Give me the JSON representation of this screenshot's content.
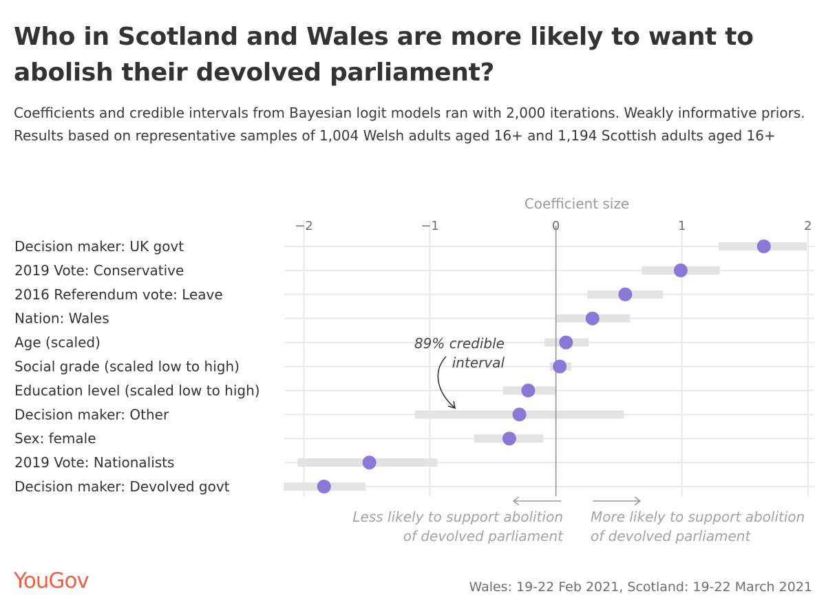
{
  "title": "Who in Scotland and Wales are more likely to want to abolish their devolved parliament?",
  "subtitle": "Coefficients and credible intervals from Bayesian logit models ran with 2,000 iterations. Weakly informative priors. Results based on representative samples of 1,004 Welsh adults aged 16+ and 1,194 Scottish adults aged 16+",
  "brand": "YouGov",
  "source": "Wales: 19-22 Feb 2021, Scotland: 19-22 March 2021",
  "colors": {
    "point": "#8a77d8",
    "interval": "#e3e3e3",
    "grid": "#e8e8e8",
    "zero": "#8f8f8f",
    "brand": "#ef5f42"
  },
  "chart_data": {
    "type": "scatter",
    "xlabel": "Coefficient size",
    "xlim": [
      -2.15,
      2.05
    ],
    "xticks": [
      -2,
      -1,
      0,
      1,
      2
    ],
    "xtick_labels": [
      "−2",
      "−1",
      "0",
      "1",
      "2"
    ],
    "categories": [
      "Decision maker: UK govt",
      "2019 Vote: Conservative",
      "2016 Referendum vote: Leave",
      "Nation: Wales",
      "Age (scaled)",
      "Social grade (scaled low to high)",
      "Education level (scaled low to high)",
      "Decision maker: Other",
      "Sex: female",
      "2019 Vote: Nationalists",
      "Decision maker: Devolved govt"
    ],
    "series": [
      {
        "values": [
          1.65,
          0.99,
          0.55,
          0.29,
          0.08,
          0.03,
          -0.22,
          -0.29,
          -0.37,
          -1.48,
          -1.84
        ],
        "lower": [
          1.29,
          0.68,
          0.25,
          0.0,
          -0.09,
          -0.05,
          -0.42,
          -1.12,
          -0.65,
          -2.05,
          -2.16
        ],
        "upper": [
          1.99,
          1.3,
          0.85,
          0.59,
          0.26,
          0.12,
          0.0,
          0.54,
          -0.1,
          -0.94,
          -1.51
        ]
      }
    ],
    "annotations": {
      "interval_label_line1": "89% credible",
      "interval_label_line2": "interval",
      "left_note_line1": "Less likely to support abolition",
      "left_note_line2": "of devolved parliament",
      "right_note_line1": "More likely to support abolition",
      "right_note_line2": "of devolved parliament"
    }
  }
}
